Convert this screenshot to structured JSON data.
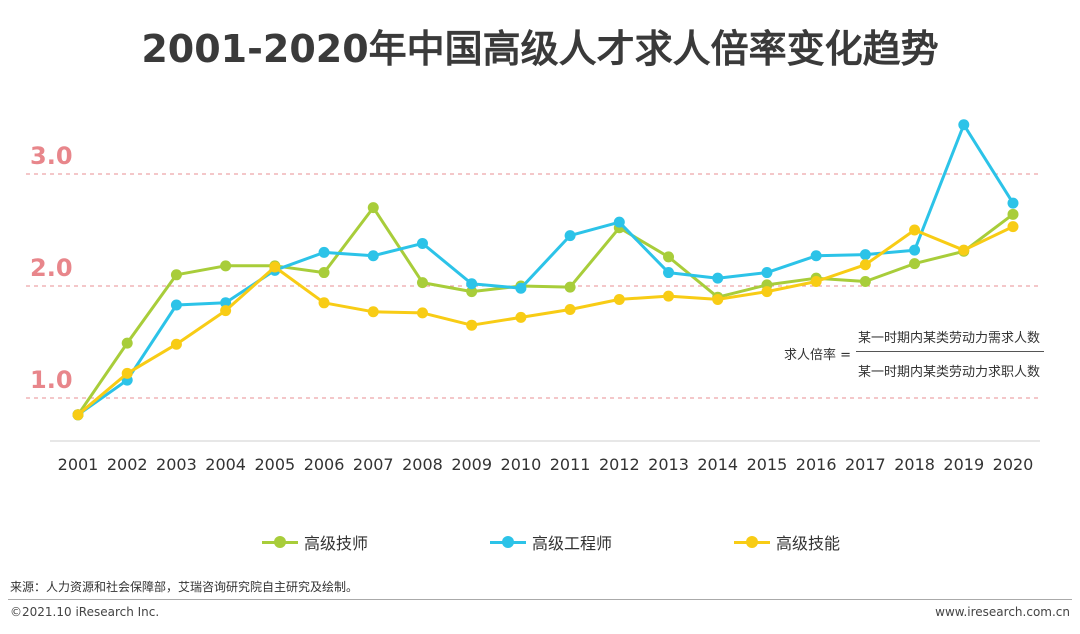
{
  "page": {
    "source": "来源：人力资源和社会保障部，艾瑞咨询研究院自主研究及绘制。",
    "copyright": "©2021.10 iResearch Inc.",
    "website": "www.iresearch.com.cn"
  },
  "formula": {
    "lhs": "求人倍率 =",
    "numerator": "某一时期内某类劳动力需求人数",
    "denominator": "某一时期内某类劳动力求职人数"
  },
  "chart_data": {
    "type": "line",
    "title": "2001-2020年中国高级人才求人倍率变化趋势",
    "xlabel": "",
    "ylabel": "",
    "categories": [
      "2001",
      "2002",
      "2003",
      "2004",
      "2005",
      "2006",
      "2007",
      "2008",
      "2009",
      "2010",
      "2011",
      "2012",
      "2013",
      "2014",
      "2015",
      "2016",
      "2017",
      "2018",
      "2019",
      "2020"
    ],
    "ylim": [
      0.6,
      3.4
    ],
    "yticks": [
      1.0,
      2.0,
      3.0
    ],
    "ytick_labels": [
      "1.0",
      "2.0",
      "3.0"
    ],
    "grid": "dashed at y ticks",
    "legend_position": "bottom",
    "series": [
      {
        "name": "高级技师",
        "color": "#a8cd3a",
        "values": [
          0.85,
          1.49,
          2.1,
          2.18,
          2.18,
          2.12,
          2.7,
          2.03,
          1.95,
          2.0,
          1.99,
          2.52,
          2.26,
          1.9,
          2.01,
          2.07,
          2.04,
          2.2,
          2.31,
          2.64
        ]
      },
      {
        "name": "高级工程师",
        "color": "#2cc3e8",
        "values": [
          0.85,
          1.16,
          1.83,
          1.85,
          2.14,
          2.3,
          2.27,
          2.38,
          2.02,
          1.98,
          2.45,
          2.57,
          2.12,
          2.07,
          2.12,
          2.27,
          2.28,
          2.32,
          3.44,
          2.74
        ]
      },
      {
        "name": "高级技能",
        "color": "#f8cc15",
        "values": [
          0.85,
          1.22,
          1.48,
          1.78,
          2.17,
          1.85,
          1.77,
          1.76,
          1.65,
          1.72,
          1.79,
          1.88,
          1.91,
          1.88,
          1.95,
          2.04,
          2.19,
          2.5,
          2.32,
          2.53
        ]
      }
    ]
  }
}
